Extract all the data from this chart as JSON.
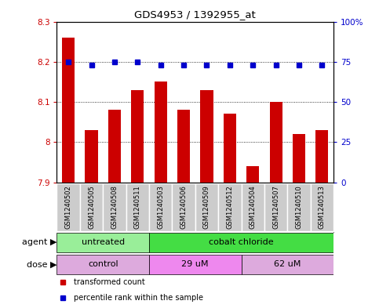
{
  "title": "GDS4953 / 1392955_at",
  "samples": [
    "GSM1240502",
    "GSM1240505",
    "GSM1240508",
    "GSM1240511",
    "GSM1240503",
    "GSM1240506",
    "GSM1240509",
    "GSM1240512",
    "GSM1240504",
    "GSM1240507",
    "GSM1240510",
    "GSM1240513"
  ],
  "bar_values": [
    8.26,
    8.03,
    8.08,
    8.13,
    8.15,
    8.08,
    8.13,
    8.07,
    7.94,
    8.1,
    8.02,
    8.03
  ],
  "percentile_values": [
    75,
    73,
    75,
    75,
    73,
    73,
    73,
    73,
    73,
    73,
    73,
    73
  ],
  "bar_color": "#cc0000",
  "dot_color": "#0000cc",
  "ylim_left": [
    7.9,
    8.3
  ],
  "ylim_right": [
    0,
    100
  ],
  "yticks_left": [
    7.9,
    8.0,
    8.1,
    8.2,
    8.3
  ],
  "yticks_right": [
    0,
    25,
    50,
    75,
    100
  ],
  "ytick_labels_left": [
    "7.9",
    "8",
    "8.1",
    "8.2",
    "8.3"
  ],
  "ytick_labels_right": [
    "0",
    "25",
    "50",
    "75",
    "100%"
  ],
  "hlines": [
    8.0,
    8.1,
    8.2
  ],
  "agent_groups": [
    {
      "label": "untreated",
      "start": 0,
      "end": 4,
      "color": "#99ee99"
    },
    {
      "label": "cobalt chloride",
      "start": 4,
      "end": 12,
      "color": "#44dd44"
    }
  ],
  "dose_groups": [
    {
      "label": "control",
      "start": 0,
      "end": 4,
      "color": "#ddaadd"
    },
    {
      "label": "29 uM",
      "start": 4,
      "end": 8,
      "color": "#ee88ee"
    },
    {
      "label": "62 uM",
      "start": 8,
      "end": 12,
      "color": "#ddaadd"
    }
  ],
  "legend_bar_label": "transformed count",
  "legend_dot_label": "percentile rank within the sample",
  "agent_label": "agent",
  "dose_label": "dose",
  "bar_width": 0.55,
  "background_color": "#ffffff",
  "plot_bg_color": "#ffffff",
  "tick_label_color_left": "#cc0000",
  "tick_label_color_right": "#0000cc",
  "gray_box_color": "#cccccc",
  "label_fontsize": 8,
  "tick_fontsize": 7.5
}
